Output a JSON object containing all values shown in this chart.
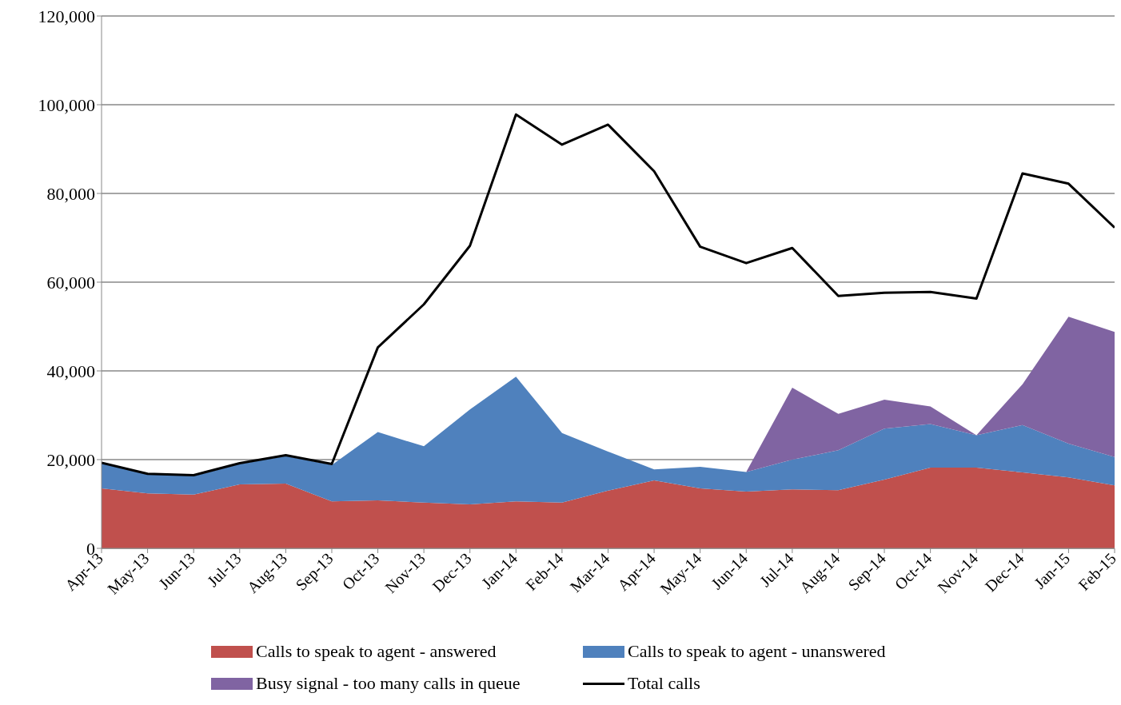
{
  "chart_data": {
    "type": "area",
    "stacked": true,
    "categories": [
      "Apr-13",
      "May-13",
      "Jun-13",
      "Jul-13",
      "Aug-13",
      "Sep-13",
      "Oct-13",
      "Nov-13",
      "Dec-13",
      "Jan-14",
      "Feb-14",
      "Mar-14",
      "Apr-14",
      "May-14",
      "Jun-14",
      "Jul-14",
      "Aug-14",
      "Sep-14",
      "Oct-14",
      "Nov-14",
      "Dec-14",
      "Jan-15",
      "Feb-15"
    ],
    "series": [
      {
        "name": "Calls to speak to agent - answered",
        "color": "#c0504d",
        "values": [
          13500,
          12400,
          12100,
          14400,
          14600,
          10600,
          10800,
          10300,
          9900,
          10600,
          10300,
          13000,
          15300,
          13500,
          12800,
          13300,
          13100,
          15500,
          18200,
          18200,
          17100,
          16000,
          14200
        ]
      },
      {
        "name": "Calls to speak to agent - unanswered",
        "color": "#4f81bd",
        "values": [
          5800,
          4400,
          4200,
          4600,
          6200,
          8200,
          15400,
          12700,
          21400,
          28100,
          15700,
          8800,
          2500,
          4900,
          4400,
          6700,
          9000,
          11500,
          9800,
          7300,
          10700,
          7600,
          6400
        ]
      },
      {
        "name": "Busy signal - too many calls in queue",
        "color": "#8064a2",
        "values": [
          0,
          0,
          0,
          0,
          0,
          0,
          0,
          0,
          0,
          0,
          0,
          0,
          0,
          0,
          0,
          16200,
          8200,
          6500,
          4000,
          0,
          9200,
          28600,
          28200
        ]
      },
      {
        "name": "Total calls",
        "type": "line",
        "color": "#000000",
        "values": [
          19300,
          16800,
          16500,
          19200,
          21000,
          19000,
          45300,
          55000,
          68200,
          97800,
          91000,
          95500,
          85000,
          68000,
          64300,
          67700,
          56900,
          57600,
          57800,
          56300,
          84500,
          82200,
          72300
        ]
      }
    ],
    "ylim": [
      0,
      120000
    ],
    "yticks": [
      0,
      {
        "value": 20000,
        "label": "20,000"
      },
      {
        "value": 40000,
        "label": "40,000"
      },
      {
        "value": 60000,
        "label": "60,000"
      },
      {
        "value": 80000,
        "label": "80,000"
      },
      {
        "value": 100000,
        "label": "100,000"
      },
      {
        "value": 120000,
        "label": "120,000"
      }
    ],
    "grid": "y",
    "legend": "bottom"
  }
}
